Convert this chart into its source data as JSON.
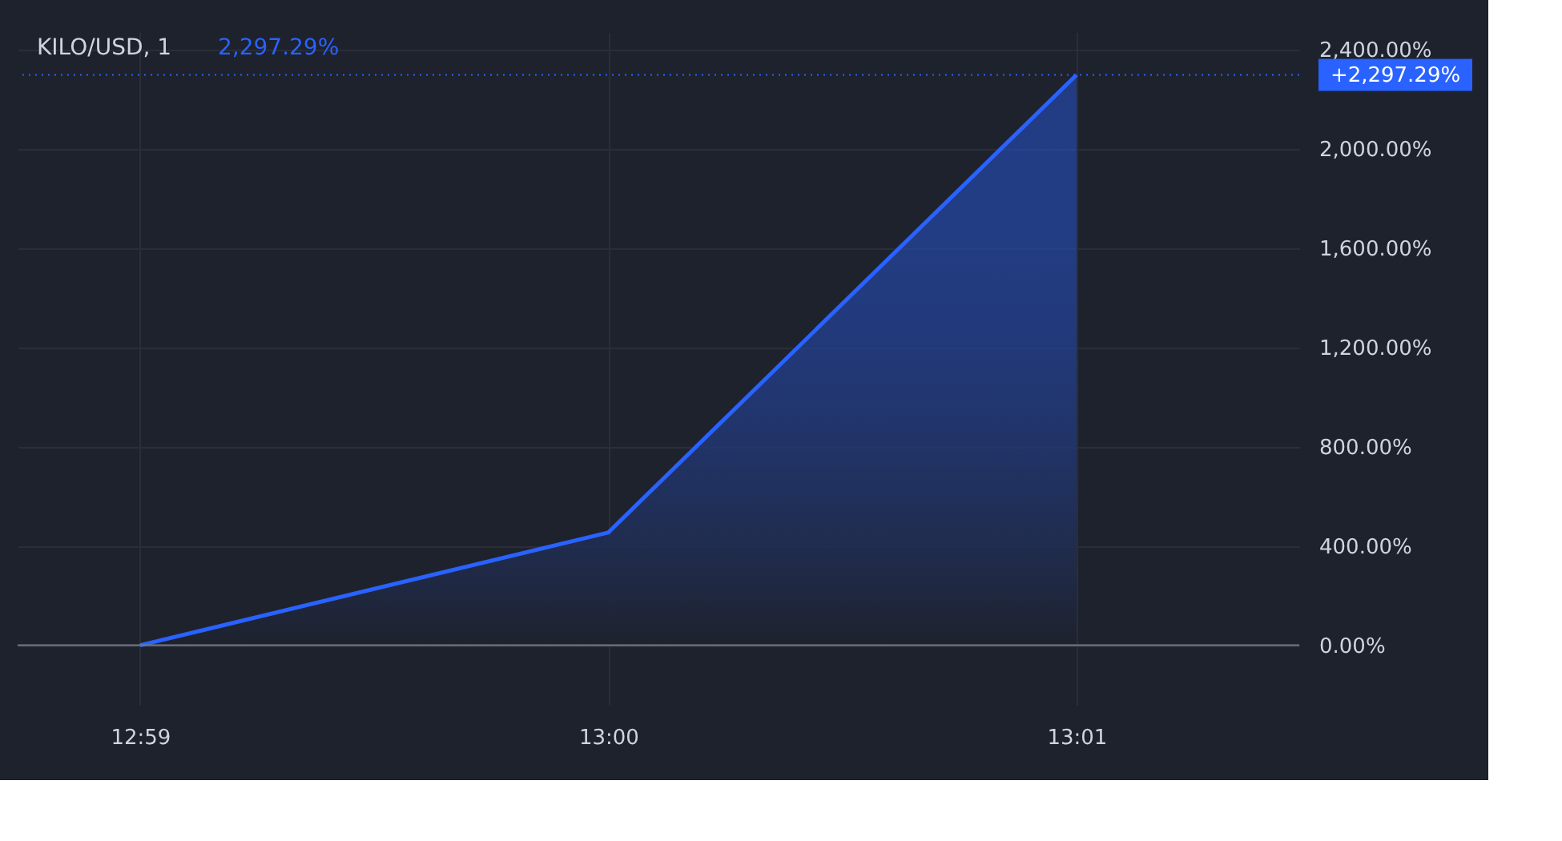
{
  "chart_data": {
    "type": "area",
    "title": "KILO/USD, 1",
    "annotations": [
      "2,297.29%"
    ],
    "x": [
      12.98333,
      13.0,
      13.01667
    ],
    "series": [
      {
        "color": "#2962ff",
        "values": [
          0,
          454,
          2297.29
        ]
      }
    ],
    "xlim": [
      12.97897,
      13.0246
    ],
    "xticks": [
      {
        "value": 12.98333,
        "label": "12:59"
      },
      {
        "value": 13.0,
        "label": "13:00"
      },
      {
        "value": 13.01667,
        "label": "13:01"
      }
    ],
    "ylim": [
      -240,
      2470
    ],
    "yticks": [
      {
        "value": 0,
        "label": "0.00%"
      },
      {
        "value": 400,
        "label": "400.00%"
      },
      {
        "value": 800,
        "label": "800.00%"
      },
      {
        "value": 1200,
        "label": "1,200.00%"
      },
      {
        "value": 1600,
        "label": "1,600.00%"
      },
      {
        "value": 2000,
        "label": "2,000.00%"
      },
      {
        "value": 2400,
        "label": "2,400.00%"
      }
    ],
    "ref_lines": [
      {
        "axis": "y",
        "value": 2297.29,
        "label": "+2,297.29%",
        "color": "#2962ff",
        "line_style": "dotted"
      },
      {
        "axis": "y",
        "value": 0,
        "color": "#787b86",
        "line_style": "solid"
      }
    ],
    "grid": true
  }
}
